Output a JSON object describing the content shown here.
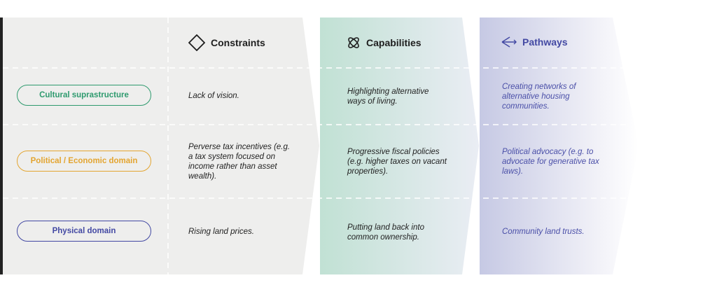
{
  "colors": {
    "cultural": "#2e9a6e",
    "political": "#e3a531",
    "physical": "#4349a3",
    "pathways_text": "#4a4fa8",
    "constraints_bg": "#eeeeed",
    "capabilities_bg": "#c2e2d6",
    "pathways_bg": "#c8cbe6"
  },
  "columns": [
    {
      "title": "Constraints",
      "icon": "diamond-icon"
    },
    {
      "title": "Capabilities",
      "icon": "atom-icon"
    },
    {
      "title": "Pathways",
      "icon": "diverging-arrows-icon"
    }
  ],
  "rows": [
    {
      "label": "Cultural suprastructure",
      "constraint": "Lack of vision.",
      "capability": "Highlighting alternative ways of living.",
      "pathway": "Creating networks of alternative housing communities."
    },
    {
      "label": "Political / Economic domain",
      "constraint": "Perverse tax incentives (e.g. a tax system focused on income rather than asset wealth).",
      "capability": "Progressive fiscal policies (e.g. higher taxes on vacant properties).",
      "pathway": "Political advocacy (e.g. to advocate for generative tax laws)."
    },
    {
      "label": "Physical domain",
      "constraint": "Rising land prices.",
      "capability": "Putting land back into common ownership.",
      "pathway": "Community land trusts."
    }
  ]
}
